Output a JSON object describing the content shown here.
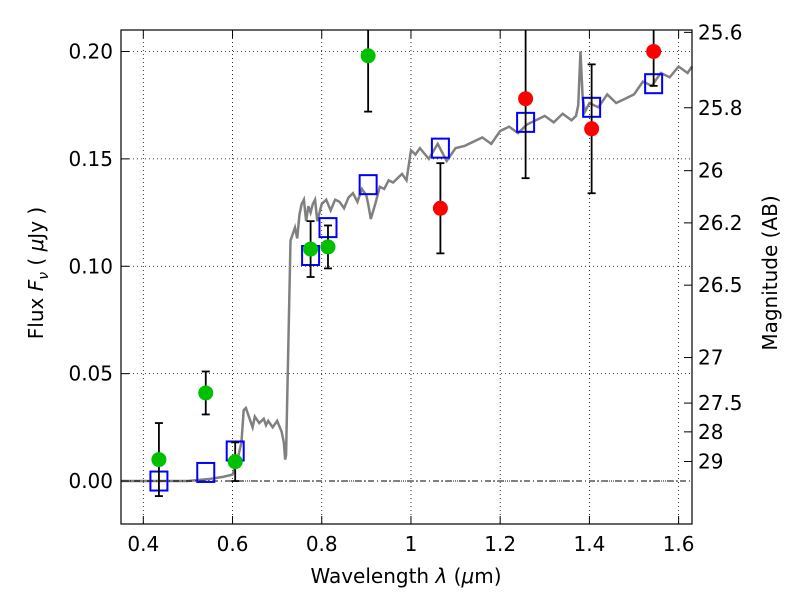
{
  "chart_data": {
    "type": "scatter",
    "xlabel": "Wavelength  λ (μm)",
    "ylabel": "Flux  Fν  ( μJy )",
    "ylabel_right": "Magnitude (AB)",
    "xlim": [
      0.35,
      1.63
    ],
    "ylim": [
      -0.02,
      0.21
    ],
    "grid": true,
    "x_ticks": [
      0.4,
      0.6,
      0.8,
      1.0,
      1.2,
      1.4,
      1.6
    ],
    "x_tick_labels": [
      "0.4",
      "0.6",
      "0.8",
      "1",
      "1.2",
      "1.4",
      "1.6"
    ],
    "y_ticks": [
      0.0,
      0.05,
      0.1,
      0.15,
      0.2
    ],
    "y_tick_labels": [
      "0.00",
      "0.05",
      "0.10",
      "0.15",
      "0.20"
    ],
    "mag_ticks": [
      {
        "label": "25.6",
        "flux": 0.2089
      },
      {
        "label": "25.8",
        "flux": 0.1738
      },
      {
        "label": "26",
        "flux": 0.1445
      },
      {
        "label": "26.2",
        "flux": 0.1202
      },
      {
        "label": "26.5",
        "flux": 0.0912
      },
      {
        "label": "27",
        "flux": 0.0575
      },
      {
        "label": "27.5",
        "flux": 0.0363
      },
      {
        "label": "28",
        "flux": 0.0229
      },
      {
        "label": "29",
        "flux": 0.0091
      }
    ],
    "template": {
      "color": "#808080",
      "x": [
        0.35,
        0.44,
        0.5,
        0.55,
        0.58,
        0.6,
        0.61,
        0.62,
        0.625,
        0.63,
        0.64,
        0.645,
        0.65,
        0.66,
        0.67,
        0.675,
        0.68,
        0.69,
        0.7,
        0.71,
        0.715,
        0.718,
        0.72,
        0.73,
        0.74,
        0.745,
        0.75,
        0.755,
        0.76,
        0.765,
        0.77,
        0.775,
        0.78,
        0.785,
        0.79,
        0.8,
        0.81,
        0.82,
        0.83,
        0.84,
        0.85,
        0.86,
        0.87,
        0.88,
        0.89,
        0.9,
        0.905,
        0.91,
        0.92,
        0.93,
        0.94,
        0.95,
        0.96,
        0.97,
        0.98,
        0.99,
        1.0,
        1.01,
        1.02,
        1.04,
        1.06,
        1.08,
        1.1,
        1.12,
        1.14,
        1.16,
        1.18,
        1.2,
        1.22,
        1.24,
        1.26,
        1.28,
        1.3,
        1.32,
        1.34,
        1.36,
        1.37,
        1.375,
        1.38,
        1.385,
        1.39,
        1.4,
        1.42,
        1.44,
        1.46,
        1.48,
        1.5,
        1.52,
        1.54,
        1.56,
        1.58,
        1.6,
        1.62,
        1.63
      ],
      "y": [
        0.0,
        0.0,
        0.0,
        0.001,
        0.002,
        0.003,
        0.009,
        0.018,
        0.033,
        0.034,
        0.028,
        0.025,
        0.03,
        0.027,
        0.029,
        0.026,
        0.028,
        0.025,
        0.028,
        0.023,
        0.018,
        0.01,
        0.012,
        0.112,
        0.118,
        0.113,
        0.124,
        0.129,
        0.131,
        0.121,
        0.128,
        0.125,
        0.129,
        0.131,
        0.121,
        0.129,
        0.131,
        0.126,
        0.131,
        0.13,
        0.127,
        0.132,
        0.134,
        0.13,
        0.136,
        0.133,
        0.128,
        0.122,
        0.129,
        0.137,
        0.136,
        0.14,
        0.139,
        0.141,
        0.143,
        0.14,
        0.154,
        0.152,
        0.155,
        0.15,
        0.157,
        0.149,
        0.155,
        0.156,
        0.158,
        0.16,
        0.157,
        0.163,
        0.165,
        0.162,
        0.166,
        0.168,
        0.17,
        0.167,
        0.171,
        0.168,
        0.17,
        0.175,
        0.2,
        0.178,
        0.172,
        0.176,
        0.174,
        0.18,
        0.176,
        0.178,
        0.18,
        0.186,
        0.184,
        0.19,
        0.188,
        0.193,
        0.19,
        0.193
      ]
    },
    "series": [
      {
        "marker": "square",
        "color": "#0000ff",
        "points": [
          {
            "x": 0.435,
            "y": 0.0
          },
          {
            "x": 0.54,
            "y": 0.004
          },
          {
            "x": 0.606,
            "y": 0.014
          },
          {
            "x": 0.775,
            "y": 0.105
          },
          {
            "x": 0.814,
            "y": 0.118
          },
          {
            "x": 0.904,
            "y": 0.138
          },
          {
            "x": 1.066,
            "y": 0.155
          },
          {
            "x": 1.257,
            "y": 0.167
          },
          {
            "x": 1.405,
            "y": 0.174
          },
          {
            "x": 1.544,
            "y": 0.185
          }
        ]
      },
      {
        "marker": "circle",
        "color": "#00c000",
        "points": [
          {
            "x": 0.435,
            "y": 0.01,
            "err": 0.017
          },
          {
            "x": 0.54,
            "y": 0.041,
            "err": 0.01
          },
          {
            "x": 0.606,
            "y": 0.009,
            "err": 0.009
          },
          {
            "x": 0.775,
            "y": 0.108,
            "err": 0.013
          },
          {
            "x": 0.814,
            "y": 0.109,
            "err": 0.01
          },
          {
            "x": 0.904,
            "y": 0.198,
            "err": 0.026
          }
        ]
      },
      {
        "marker": "circle",
        "color": "#ff0000",
        "points": [
          {
            "x": 1.066,
            "y": 0.127,
            "err": 0.021
          },
          {
            "x": 1.257,
            "y": 0.178,
            "err": 0.037
          },
          {
            "x": 1.405,
            "y": 0.164,
            "err": 0.03
          },
          {
            "x": 1.544,
            "y": 0.2,
            "err": 0.016
          }
        ]
      }
    ]
  }
}
